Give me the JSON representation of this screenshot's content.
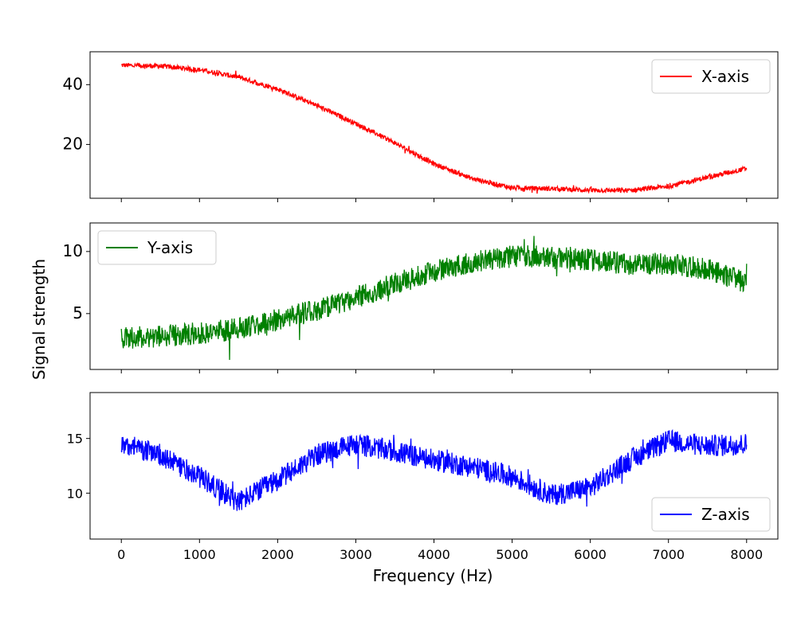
{
  "chart_data": {
    "type": "line",
    "shared_x": {
      "xlabel": "Frequency (Hz)",
      "xlim": [
        -400,
        8400
      ],
      "ticks": [
        0,
        1000,
        2000,
        3000,
        4000,
        5000,
        6000,
        7000,
        8000
      ],
      "tick_labels": [
        "0",
        "1000",
        "2000",
        "3000",
        "4000",
        "5000",
        "6000",
        "7000",
        "8000"
      ]
    },
    "shared_ylabel": "Signal strength",
    "panels": [
      {
        "name": "x-axis-panel",
        "series_name": "X-axis",
        "color": "#ff0000",
        "ylim": [
          2,
          51
        ],
        "yticks": [
          20,
          40
        ],
        "ytick_labels": [
          "20",
          "40"
        ],
        "legend_position": "upper-right",
        "noise_amplitude": 0.8,
        "trend": [
          [
            0,
            46.5
          ],
          [
            500,
            46.2
          ],
          [
            1000,
            45
          ],
          [
            1500,
            42.5
          ],
          [
            2000,
            38.5
          ],
          [
            2500,
            33
          ],
          [
            3000,
            27
          ],
          [
            3500,
            20.5
          ],
          [
            4000,
            13.5
          ],
          [
            4500,
            8.5
          ],
          [
            5000,
            5.5
          ],
          [
            5500,
            5.2
          ],
          [
            6000,
            4.7
          ],
          [
            6500,
            4.6
          ],
          [
            7000,
            6
          ],
          [
            7500,
            9
          ],
          [
            8000,
            12
          ]
        ]
      },
      {
        "name": "y-axis-panel",
        "series_name": "Y-axis",
        "color": "#008000",
        "ylim": [
          0.5,
          12.3
        ],
        "yticks": [
          5,
          10
        ],
        "ytick_labels": [
          "5",
          "10"
        ],
        "legend_position": "upper-left",
        "noise_amplitude": 0.9,
        "trend": [
          [
            0,
            3
          ],
          [
            500,
            3.2
          ],
          [
            1000,
            3.4
          ],
          [
            1500,
            3.8
          ],
          [
            2000,
            4.5
          ],
          [
            2500,
            5.3
          ],
          [
            3000,
            6.3
          ],
          [
            3500,
            7.4
          ],
          [
            4000,
            8.4
          ],
          [
            4500,
            9.2
          ],
          [
            5000,
            9.6
          ],
          [
            5500,
            9.6
          ],
          [
            6000,
            9.3
          ],
          [
            6500,
            9
          ],
          [
            7000,
            9
          ],
          [
            7500,
            8.6
          ],
          [
            8000,
            7.5
          ]
        ]
      },
      {
        "name": "z-axis-panel",
        "series_name": "Z-axis",
        "color": "#0000ff",
        "ylim": [
          5.8,
          19.2
        ],
        "yticks": [
          10,
          15
        ],
        "ytick_labels": [
          "10",
          "15"
        ],
        "legend_position": "lower-right",
        "noise_amplitude": 1.0,
        "trend": [
          [
            0,
            14.5
          ],
          [
            500,
            13.5
          ],
          [
            1000,
            11.5
          ],
          [
            1500,
            9.2
          ],
          [
            2000,
            11.2
          ],
          [
            2500,
            13.5
          ],
          [
            3000,
            14.5
          ],
          [
            3500,
            13.8
          ],
          [
            4000,
            13
          ],
          [
            4500,
            12.4
          ],
          [
            5000,
            11.5
          ],
          [
            5500,
            9.8
          ],
          [
            6000,
            10.5
          ],
          [
            6500,
            13
          ],
          [
            7000,
            14.8
          ],
          [
            7500,
            14.3
          ],
          [
            8000,
            14.5
          ]
        ]
      }
    ]
  }
}
